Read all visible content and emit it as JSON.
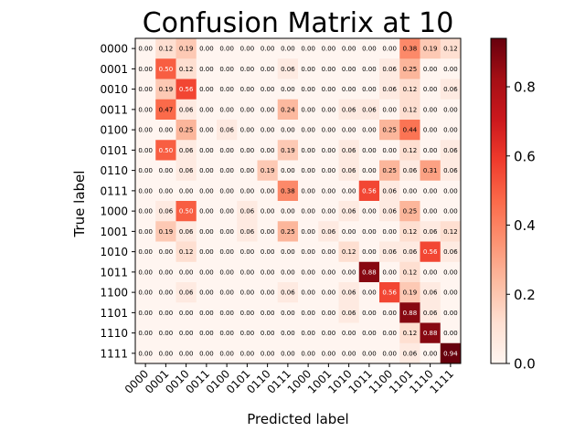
{
  "chart_data": {
    "type": "heatmap",
    "title": "Confusion Matrix at 10",
    "xlabel": "Predicted label",
    "ylabel": "True label",
    "categories": [
      "0000",
      "0001",
      "0010",
      "0011",
      "0100",
      "0101",
      "0110",
      "0111",
      "1000",
      "1001",
      "1010",
      "1011",
      "1100",
      "1101",
      "1110",
      "1111"
    ],
    "matrix": [
      [
        0.0,
        0.12,
        0.19,
        0.0,
        0.0,
        0.0,
        0.0,
        0.0,
        0.0,
        0.0,
        0.0,
        0.0,
        0.0,
        0.38,
        0.19,
        0.12
      ],
      [
        0.0,
        0.5,
        0.12,
        0.0,
        0.0,
        0.0,
        0.0,
        0.06,
        0.0,
        0.0,
        0.0,
        0.0,
        0.06,
        0.25,
        0.0,
        0.0
      ],
      [
        0.0,
        0.19,
        0.56,
        0.0,
        0.0,
        0.0,
        0.0,
        0.0,
        0.0,
        0.0,
        0.0,
        0.0,
        0.06,
        0.12,
        0.0,
        0.06
      ],
      [
        0.0,
        0.47,
        0.06,
        0.0,
        0.0,
        0.0,
        0.0,
        0.24,
        0.0,
        0.0,
        0.06,
        0.06,
        0.0,
        0.12,
        0.0,
        0.0
      ],
      [
        0.0,
        0.0,
        0.25,
        0.0,
        0.06,
        0.0,
        0.0,
        0.0,
        0.0,
        0.0,
        0.0,
        0.0,
        0.25,
        0.44,
        0.0,
        0.0
      ],
      [
        0.0,
        0.5,
        0.06,
        0.0,
        0.0,
        0.0,
        0.0,
        0.19,
        0.0,
        0.0,
        0.06,
        0.0,
        0.0,
        0.12,
        0.0,
        0.06
      ],
      [
        0.0,
        0.0,
        0.06,
        0.0,
        0.0,
        0.0,
        0.19,
        0.0,
        0.0,
        0.0,
        0.06,
        0.0,
        0.25,
        0.06,
        0.31,
        0.06
      ],
      [
        0.0,
        0.0,
        0.0,
        0.0,
        0.0,
        0.0,
        0.0,
        0.38,
        0.0,
        0.0,
        0.0,
        0.56,
        0.06,
        0.0,
        0.0,
        0.0
      ],
      [
        0.0,
        0.06,
        0.5,
        0.0,
        0.0,
        0.06,
        0.0,
        0.0,
        0.0,
        0.0,
        0.06,
        0.0,
        0.06,
        0.25,
        0.0,
        0.0
      ],
      [
        0.0,
        0.19,
        0.06,
        0.0,
        0.0,
        0.06,
        0.0,
        0.25,
        0.0,
        0.06,
        0.0,
        0.0,
        0.0,
        0.12,
        0.06,
        0.12
      ],
      [
        0.0,
        0.0,
        0.12,
        0.0,
        0.0,
        0.0,
        0.0,
        0.0,
        0.0,
        0.0,
        0.12,
        0.0,
        0.06,
        0.06,
        0.56,
        0.06
      ],
      [
        0.0,
        0.0,
        0.0,
        0.0,
        0.0,
        0.0,
        0.0,
        0.0,
        0.0,
        0.0,
        0.0,
        0.88,
        0.0,
        0.12,
        0.0,
        0.0
      ],
      [
        0.0,
        0.0,
        0.06,
        0.0,
        0.0,
        0.0,
        0.0,
        0.06,
        0.0,
        0.0,
        0.06,
        0.0,
        0.56,
        0.19,
        0.06,
        0.0
      ],
      [
        0.0,
        0.0,
        0.0,
        0.0,
        0.0,
        0.0,
        0.0,
        0.0,
        0.0,
        0.0,
        0.06,
        0.0,
        0.0,
        0.88,
        0.06,
        0.0
      ],
      [
        0.0,
        0.0,
        0.0,
        0.0,
        0.0,
        0.0,
        0.0,
        0.0,
        0.0,
        0.0,
        0.0,
        0.0,
        0.0,
        0.12,
        0.88,
        0.0
      ],
      [
        0.0,
        0.0,
        0.0,
        0.0,
        0.0,
        0.0,
        0.0,
        0.0,
        0.0,
        0.0,
        0.0,
        0.0,
        0.0,
        0.06,
        0.0,
        0.94
      ]
    ],
    "colorbar": {
      "range": [
        0.0,
        0.94
      ],
      "ticks": [
        "0.0",
        "0.2",
        "0.4",
        "0.6",
        "0.8"
      ],
      "colormap": "Reds"
    },
    "grid": false,
    "legend": "none"
  }
}
